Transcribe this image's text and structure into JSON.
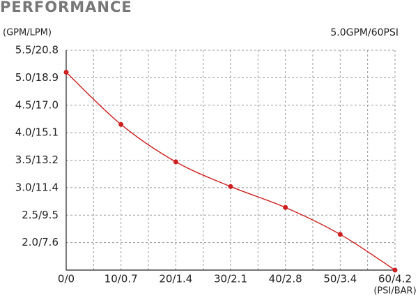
{
  "chart_data": {
    "type": "line",
    "title": "PERFORMANCE",
    "y_label": "(GPM/LPM)",
    "x_label": "(PSI/BAR)",
    "annotation": "5.0GPM/60PSI",
    "x": [
      0,
      10,
      20,
      30,
      40,
      50,
      60
    ],
    "series": [
      {
        "name": "5.0GPM/60PSI",
        "color": "#cc1f1f",
        "values": [
          5.1,
          4.15,
          3.47,
          3.02,
          2.64,
          2.15,
          1.5
        ]
      }
    ],
    "xlim": [
      0,
      60
    ],
    "xticks": [
      {
        "value": 0,
        "label": "0/0"
      },
      {
        "value": 10,
        "label": "10/0.7"
      },
      {
        "value": 20,
        "label": "20/1.4"
      },
      {
        "value": 30,
        "label": "30/2.1"
      },
      {
        "value": 40,
        "label": "40/2.8"
      },
      {
        "value": 50,
        "label": "50/3.4"
      },
      {
        "value": 60,
        "label": "60/4.2"
      }
    ],
    "ylim": [
      1.5,
      5.5
    ],
    "yticks": [
      {
        "value": 2.0,
        "label": "2.0/7.6"
      },
      {
        "value": 2.5,
        "label": "2.5/9.5"
      },
      {
        "value": 3.0,
        "label": "3.0/11.4"
      },
      {
        "value": 3.5,
        "label": "3.5/13.2"
      },
      {
        "value": 4.0,
        "label": "4.0/15.1"
      },
      {
        "value": 4.5,
        "label": "4.5/17.0"
      },
      {
        "value": 5.0,
        "label": "5.0/18.9"
      },
      {
        "value": 5.5,
        "label": "5.5/20.8"
      }
    ],
    "grid": true
  }
}
